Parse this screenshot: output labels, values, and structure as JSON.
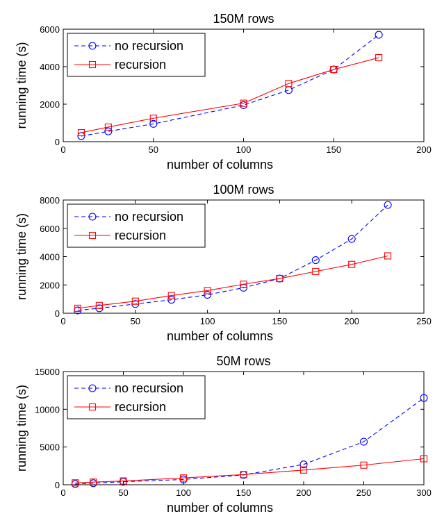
{
  "chart_data": [
    {
      "type": "line",
      "title": "150M rows",
      "xlabel": "number of columns",
      "ylabel": "running time (s)",
      "xlim": [
        0,
        200
      ],
      "ylim": [
        0,
        6000
      ],
      "xticks": [
        0,
        50,
        100,
        150,
        200
      ],
      "yticks": [
        0,
        2000,
        4000,
        6000
      ],
      "legend_position": "top-left",
      "grid": false,
      "series": [
        {
          "name": "no recursion",
          "color": "#0000ff",
          "line_style": "dashed",
          "marker": "circle",
          "x": [
            10,
            25,
            50,
            100,
            125,
            150,
            175
          ],
          "y": [
            300,
            550,
            950,
            1950,
            2750,
            3850,
            5700
          ]
        },
        {
          "name": "recursion",
          "color": "#ff0000",
          "line_style": "solid",
          "marker": "square",
          "x": [
            10,
            25,
            50,
            100,
            125,
            150,
            175
          ],
          "y": [
            480,
            780,
            1250,
            2050,
            3100,
            3850,
            4480
          ]
        }
      ]
    },
    {
      "type": "line",
      "title": "100M rows",
      "xlabel": "number of columns",
      "ylabel": "running time (s)",
      "xlim": [
        0,
        250
      ],
      "ylim": [
        0,
        8000
      ],
      "xticks": [
        0,
        50,
        100,
        150,
        200,
        250
      ],
      "yticks": [
        0,
        2000,
        4000,
        6000,
        8000
      ],
      "legend_position": "top-left",
      "grid": false,
      "series": [
        {
          "name": "no recursion",
          "color": "#0000ff",
          "line_style": "dashed",
          "marker": "circle",
          "x": [
            10,
            25,
            50,
            75,
            100,
            125,
            150,
            175,
            200,
            225
          ],
          "y": [
            200,
            350,
            650,
            950,
            1300,
            1800,
            2450,
            3750,
            5250,
            7650
          ]
        },
        {
          "name": "recursion",
          "color": "#ff0000",
          "line_style": "solid",
          "marker": "square",
          "x": [
            10,
            25,
            50,
            75,
            100,
            125,
            150,
            175,
            200,
            225
          ],
          "y": [
            350,
            550,
            850,
            1250,
            1600,
            2050,
            2450,
            2950,
            3450,
            4050
          ]
        }
      ]
    },
    {
      "type": "line",
      "title": "50M rows",
      "xlabel": "number of columns",
      "ylabel": "running time (s)",
      "xlim": [
        0,
        300
      ],
      "ylim": [
        0,
        15000
      ],
      "xticks": [
        0,
        50,
        100,
        150,
        200,
        250,
        300
      ],
      "yticks": [
        0,
        5000,
        10000,
        15000
      ],
      "legend_position": "top-left",
      "grid": false,
      "series": [
        {
          "name": "no recursion",
          "color": "#0000ff",
          "line_style": "dashed",
          "marker": "circle",
          "x": [
            10,
            25,
            50,
            100,
            150,
            200,
            250,
            300
          ],
          "y": [
            100,
            200,
            400,
            700,
            1300,
            2700,
            5700,
            11500
          ]
        },
        {
          "name": "recursion",
          "color": "#ff0000",
          "line_style": "solid",
          "marker": "square",
          "x": [
            10,
            25,
            50,
            100,
            150,
            200,
            250,
            300
          ],
          "y": [
            250,
            350,
            500,
            900,
            1350,
            1950,
            2600,
            3450
          ]
        }
      ]
    }
  ]
}
